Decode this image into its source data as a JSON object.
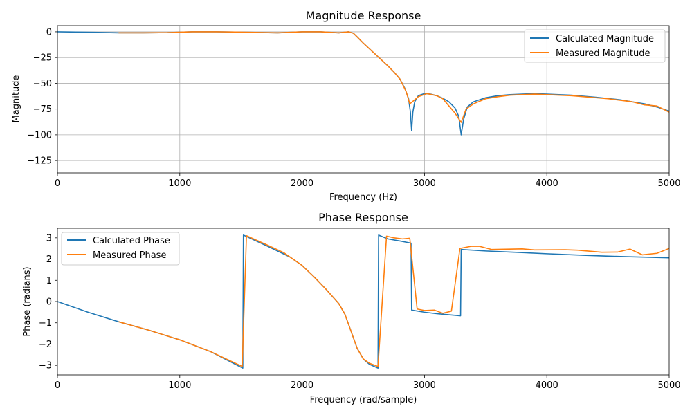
{
  "chart_data": [
    {
      "type": "line",
      "title": "Magnitude Response",
      "xlabel": "Frequency (Hz)",
      "ylabel": "Magnitude",
      "xlim": [
        0,
        5000
      ],
      "ylim": [
        -137,
        6
      ],
      "xticks": [
        0,
        1000,
        2000,
        3000,
        4000,
        5000
      ],
      "xtick_labels": [
        "0",
        "1000",
        "2000",
        "3000",
        "4000",
        "5000"
      ],
      "yticks": [
        0,
        -25,
        -50,
        -75,
        -100,
        -125
      ],
      "ytick_labels": [
        "0",
        "−25",
        "−50",
        "−75",
        "−100",
        "−125"
      ],
      "grid": true,
      "legend_position": "top-right",
      "series": [
        {
          "name": "Calculated Magnitude",
          "color": "#1f77b4",
          "points": [
            [
              0,
              0
            ],
            [
              300,
              -0.5
            ],
            [
              500,
              -1
            ],
            [
              700,
              -1
            ],
            [
              900,
              -0.8
            ],
            [
              1100,
              0
            ],
            [
              1300,
              0
            ],
            [
              1500,
              -0.3
            ],
            [
              1800,
              -1
            ],
            [
              2000,
              0
            ],
            [
              2150,
              0
            ],
            [
              2300,
              -1
            ],
            [
              2380,
              0
            ],
            [
              2420,
              -1.5
            ],
            [
              2450,
              -5
            ],
            [
              2500,
              -11
            ],
            [
              2600,
              -22
            ],
            [
              2700,
              -33
            ],
            [
              2750,
              -39
            ],
            [
              2800,
              -46
            ],
            [
              2840,
              -55
            ],
            [
              2870,
              -65
            ],
            [
              2885,
              -78
            ],
            [
              2895,
              -96
            ],
            [
              2905,
              -78
            ],
            [
              2920,
              -68
            ],
            [
              2950,
              -62
            ],
            [
              3000,
              -60
            ],
            [
              3050,
              -60.5
            ],
            [
              3100,
              -62
            ],
            [
              3150,
              -64.5
            ],
            [
              3200,
              -68
            ],
            [
              3250,
              -74
            ],
            [
              3280,
              -82
            ],
            [
              3300,
              -100
            ],
            [
              3320,
              -85
            ],
            [
              3350,
              -73
            ],
            [
              3400,
              -68
            ],
            [
              3500,
              -64
            ],
            [
              3600,
              -62
            ],
            [
              3700,
              -61
            ],
            [
              3800,
              -60.5
            ],
            [
              3900,
              -60
            ],
            [
              4000,
              -60.5
            ],
            [
              4200,
              -61.5
            ],
            [
              4400,
              -63.5
            ],
            [
              4600,
              -66
            ],
            [
              4800,
              -70
            ],
            [
              4900,
              -73
            ],
            [
              5000,
              -77
            ]
          ]
        },
        {
          "name": "Measured Magnitude",
          "color": "#ff7f0e",
          "points": [
            [
              500,
              -1
            ],
            [
              700,
              -1
            ],
            [
              900,
              -0.8
            ],
            [
              1100,
              0
            ],
            [
              1300,
              0
            ],
            [
              1500,
              -0.3
            ],
            [
              1800,
              -1
            ],
            [
              2000,
              0
            ],
            [
              2150,
              0
            ],
            [
              2300,
              -1
            ],
            [
              2380,
              0
            ],
            [
              2420,
              -1.5
            ],
            [
              2450,
              -5
            ],
            [
              2500,
              -11
            ],
            [
              2600,
              -22
            ],
            [
              2700,
              -33
            ],
            [
              2750,
              -39
            ],
            [
              2800,
              -46
            ],
            [
              2850,
              -58
            ],
            [
              2880,
              -70
            ],
            [
              2920,
              -66
            ],
            [
              2950,
              -63
            ],
            [
              3020,
              -60
            ],
            [
              3100,
              -62
            ],
            [
              3150,
              -65
            ],
            [
              3200,
              -72
            ],
            [
              3250,
              -79
            ],
            [
              3300,
              -88
            ],
            [
              3340,
              -75
            ],
            [
              3400,
              -70
            ],
            [
              3500,
              -65
            ],
            [
              3600,
              -63
            ],
            [
              3700,
              -61.5
            ],
            [
              3800,
              -61
            ],
            [
              3900,
              -60.5
            ],
            [
              4000,
              -61
            ],
            [
              4200,
              -62
            ],
            [
              4500,
              -65
            ],
            [
              4700,
              -68
            ],
            [
              4800,
              -71
            ],
            [
              4900,
              -72
            ],
            [
              5000,
              -78
            ]
          ]
        }
      ]
    },
    {
      "type": "line",
      "title": "Phase Response",
      "xlabel": "Frequency (rad/sample)",
      "ylabel": "Phase (radians)",
      "xlim": [
        0,
        5000
      ],
      "ylim": [
        -3.45,
        3.45
      ],
      "xticks": [
        0,
        1000,
        2000,
        3000,
        4000,
        5000
      ],
      "xtick_labels": [
        "0",
        "1000",
        "2000",
        "3000",
        "4000",
        "5000"
      ],
      "yticks": [
        3,
        2,
        1,
        0,
        -1,
        -2,
        -3
      ],
      "ytick_labels": [
        "3",
        "2",
        "1",
        "0",
        "−1",
        "−2",
        "−3"
      ],
      "grid": false,
      "legend_position": "top-left",
      "series": [
        {
          "name": "Calculated Phase",
          "color": "#1f77b4",
          "points": [
            [
              0,
              0
            ],
            [
              250,
              -0.5
            ],
            [
              500,
              -0.95
            ],
            [
              750,
              -1.35
            ],
            [
              1000,
              -1.8
            ],
            [
              1250,
              -2.35
            ],
            [
              1515,
              -3.13
            ],
            [
              1520,
              3.13
            ],
            [
              1700,
              2.65
            ],
            [
              1900,
              2.1
            ],
            [
              2000,
              1.7
            ],
            [
              2100,
              1.15
            ],
            [
              2200,
              0.55
            ],
            [
              2300,
              -0.1
            ],
            [
              2350,
              -0.6
            ],
            [
              2400,
              -1.4
            ],
            [
              2450,
              -2.2
            ],
            [
              2500,
              -2.7
            ],
            [
              2550,
              -2.95
            ],
            [
              2620,
              -3.13
            ],
            [
              2625,
              3.13
            ],
            [
              2700,
              2.95
            ],
            [
              2800,
              2.85
            ],
            [
              2890,
              2.75
            ],
            [
              2895,
              -0.4
            ],
            [
              3000,
              -0.5
            ],
            [
              3100,
              -0.57
            ],
            [
              3200,
              -0.62
            ],
            [
              3295,
              -0.67
            ],
            [
              3300,
              2.45
            ],
            [
              3500,
              2.38
            ],
            [
              3700,
              2.33
            ],
            [
              4000,
              2.25
            ],
            [
              4300,
              2.18
            ],
            [
              4600,
              2.12
            ],
            [
              5000,
              2.06
            ]
          ]
        },
        {
          "name": "Measured Phase",
          "color": "#ff7f0e",
          "points": [
            [
              500,
              -0.95
            ],
            [
              750,
              -1.35
            ],
            [
              1000,
              -1.8
            ],
            [
              1250,
              -2.35
            ],
            [
              1510,
              -3.05
            ],
            [
              1545,
              3.1
            ],
            [
              1700,
              2.7
            ],
            [
              1850,
              2.3
            ],
            [
              2000,
              1.7
            ],
            [
              2100,
              1.15
            ],
            [
              2200,
              0.55
            ],
            [
              2300,
              -0.1
            ],
            [
              2350,
              -0.6
            ],
            [
              2400,
              -1.4
            ],
            [
              2450,
              -2.2
            ],
            [
              2500,
              -2.7
            ],
            [
              2550,
              -2.9
            ],
            [
              2620,
              -3.05
            ],
            [
              2690,
              3.08
            ],
            [
              2750,
              3.0
            ],
            [
              2820,
              2.95
            ],
            [
              2880,
              2.98
            ],
            [
              2940,
              -0.35
            ],
            [
              3000,
              -0.42
            ],
            [
              3080,
              -0.4
            ],
            [
              3150,
              -0.55
            ],
            [
              3220,
              -0.45
            ],
            [
              3290,
              2.5
            ],
            [
              3380,
              2.6
            ],
            [
              3450,
              2.6
            ],
            [
              3550,
              2.45
            ],
            [
              3800,
              2.48
            ],
            [
              3900,
              2.43
            ],
            [
              4150,
              2.44
            ],
            [
              4250,
              2.42
            ],
            [
              4450,
              2.32
            ],
            [
              4580,
              2.33
            ],
            [
              4680,
              2.47
            ],
            [
              4780,
              2.2
            ],
            [
              4900,
              2.27
            ],
            [
              5000,
              2.5
            ]
          ]
        }
      ]
    }
  ]
}
